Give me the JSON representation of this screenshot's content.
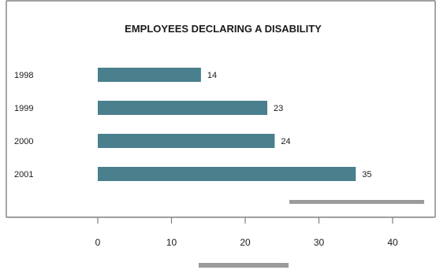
{
  "chart_data": {
    "type": "bar",
    "orientation": "horizontal",
    "title": "EMPLOYEES DECLARING A DISABILITY",
    "categories": [
      "1998",
      "1999",
      "2000",
      "2001"
    ],
    "values": [
      14,
      23,
      24,
      35
    ],
    "value_labels": [
      "14",
      "23",
      "24",
      "35"
    ],
    "xlim": [
      0,
      40
    ],
    "xticks": [
      "0",
      "10",
      "20",
      "30",
      "40"
    ],
    "xlabel": "",
    "ylabel": "",
    "grid": false,
    "legend": "none",
    "bar_color": "#4a7f8e",
    "frame_color": "#808080",
    "placeholder_color": "#9b9b9b"
  }
}
